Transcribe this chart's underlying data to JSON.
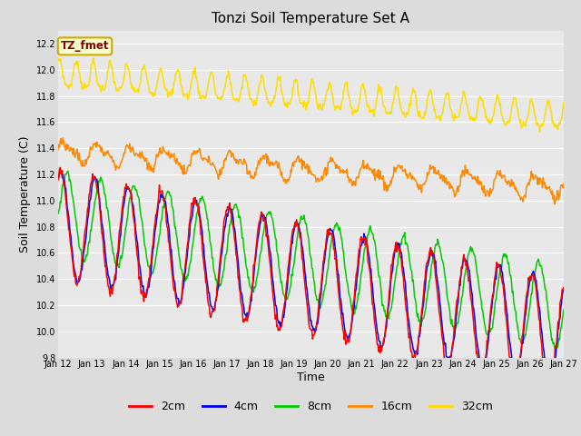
{
  "title": "Tonzi Soil Temperature Set A",
  "xlabel": "Time",
  "ylabel": "Soil Temperature (C)",
  "ylim": [
    9.8,
    12.3
  ],
  "bg_color": "#dcdcdc",
  "plot_bg_color": "#e8e8e8",
  "legend_label": "TZ_fmet",
  "legend_bg": "#ffffcc",
  "legend_border": "#ccaa00",
  "legend_text_color": "#880000",
  "series_colors": {
    "2cm": "#ff0000",
    "4cm": "#0000ee",
    "8cm": "#00cc00",
    "16cm": "#ff8800",
    "32cm": "#ffdd00"
  },
  "tick_labels": [
    "Jan 12",
    "Jan 13",
    "Jan 14",
    "Jan 15",
    "Jan 16",
    "Jan 17",
    "Jan 18",
    "Jan 19",
    "Jan 20",
    "Jan 21",
    "Jan 22",
    "Jan 23",
    "Jan 24",
    "Jan 25",
    "Jan 26",
    "Jan 27"
  ],
  "yticks": [
    9.8,
    10.0,
    10.2,
    10.4,
    10.6,
    10.8,
    11.0,
    11.2,
    11.4,
    11.6,
    11.8,
    12.0,
    12.2
  ],
  "n_points": 720
}
